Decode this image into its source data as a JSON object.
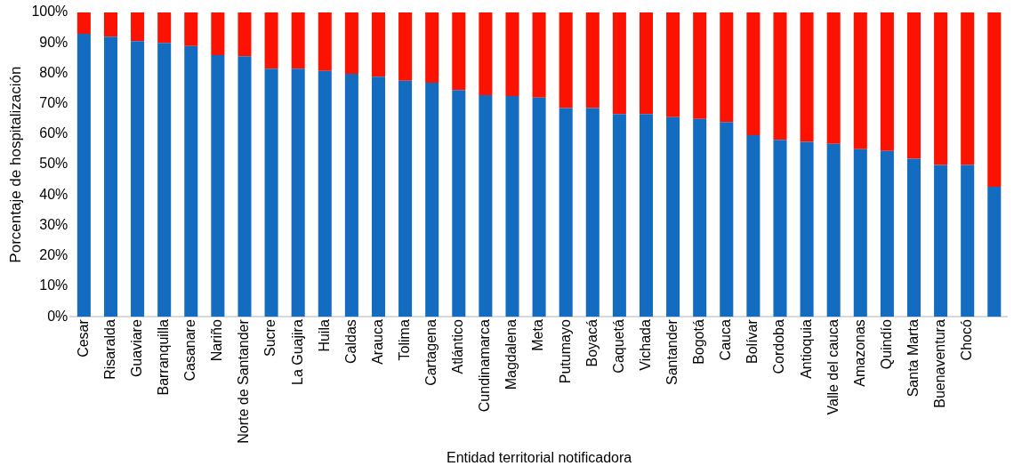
{
  "chart_data": {
    "type": "bar",
    "stacked": true,
    "xlabel": "Entidad territorial notificadora",
    "ylabel": "Porcentaje de hospitalización",
    "categories": [
      "Cesar",
      "Risaralda",
      "Guaviare",
      "Barranquilla",
      "Casanare",
      "Nariño",
      "Norte de Santander",
      "Sucre",
      "La Guajira",
      "Huila",
      "Caldas",
      "Arauca",
      "Tolima",
      "Cartagena",
      "Atlántico",
      "Cundinamarca",
      "Magdalena",
      "Meta",
      "Putumayo",
      "Boyacá",
      "Caquetá",
      "Vichada",
      "Santander",
      "Bogotá",
      "Cauca",
      "Bolívar",
      "Cordoba",
      "Antioquia",
      "Valle del cauca",
      "Amazonas",
      "Quindío",
      "Santa Marta",
      "Buenaventura",
      "Chocó",
      null
    ],
    "series": [
      {
        "color": "#136cc0",
        "values": [
          93.0,
          92.0,
          90.6,
          90.0,
          89.0,
          86.0,
          85.6,
          81.5,
          81.5,
          80.8,
          79.8,
          78.9,
          77.6,
          76.9,
          74.5,
          72.8,
          72.5,
          72.0,
          68.6,
          68.6,
          66.6,
          66.6,
          65.6,
          65.0,
          64.0,
          59.7,
          58.1,
          57.5,
          56.8,
          55.1,
          54.5,
          51.9,
          49.9,
          49.9,
          42.7
        ]
      },
      {
        "color": "#fc1200",
        "values": [
          7.0,
          8.0,
          9.4,
          10.0,
          11.0,
          14.0,
          14.4,
          18.5,
          18.5,
          19.2,
          20.2,
          21.1,
          22.4,
          23.1,
          25.5,
          27.2,
          27.5,
          28.0,
          31.4,
          31.4,
          33.4,
          33.4,
          34.4,
          35.0,
          36.0,
          40.3,
          41.9,
          42.5,
          43.2,
          44.9,
          45.5,
          48.1,
          50.1,
          50.1,
          57.3
        ]
      }
    ],
    "ylim": [
      0,
      100
    ],
    "yticks": [
      {
        "value": 0,
        "label": "0%"
      },
      {
        "value": 10,
        "label": "10%"
      },
      {
        "value": 20,
        "label": "20%"
      },
      {
        "value": 30,
        "label": "30%"
      },
      {
        "value": 40,
        "label": "40%"
      },
      {
        "value": 50,
        "label": "50%"
      },
      {
        "value": 60,
        "label": "60%"
      },
      {
        "value": 70,
        "label": "70%"
      },
      {
        "value": 80,
        "label": "80%"
      },
      {
        "value": 90,
        "label": "90%"
      },
      {
        "value": 100,
        "label": "100%"
      }
    ],
    "grid": false,
    "legend": false
  }
}
